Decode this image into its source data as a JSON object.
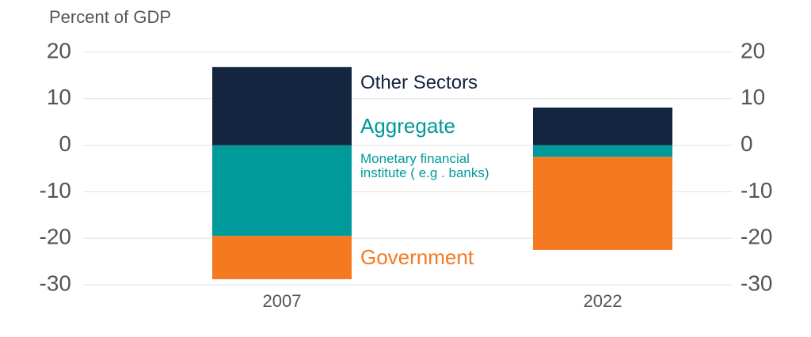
{
  "chart_data": {
    "type": "bar",
    "stacked": true,
    "y_label": "Percent of GDP",
    "categories": [
      "2007",
      "2022"
    ],
    "series": [
      {
        "name": "Other Sectors",
        "color": "#14253f",
        "values": [
          16.8,
          8.1
        ]
      },
      {
        "name": "Monetary financial institute ( e.g . banks)",
        "color": "#009a9a",
        "values": [
          -19.5,
          -2.5
        ]
      },
      {
        "name": "Government",
        "color": "#f47920",
        "values": [
          -9.3,
          -20
        ]
      }
    ],
    "annotations": [
      {
        "text": "Aggregate",
        "color": "#009a9a"
      }
    ],
    "ylim": [
      -30,
      20
    ],
    "yticks": [
      -30,
      -20,
      -10,
      0,
      10,
      20
    ],
    "y2lim": [
      -30,
      20
    ],
    "y2ticks": [
      -30,
      -20,
      -10,
      0,
      10,
      20
    ],
    "grid": true
  }
}
